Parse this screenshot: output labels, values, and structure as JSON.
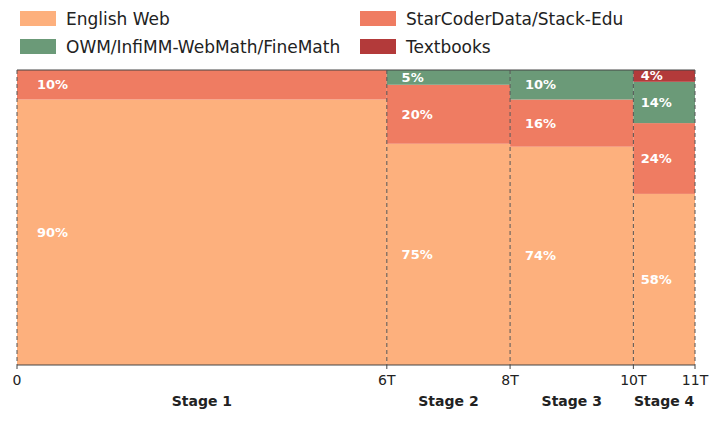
{
  "chart_data": {
    "type": "bar",
    "stacked": true,
    "data_labels": true,
    "tick_labels": "x",
    "legend": "top",
    "categories": [
      "Stage 1",
      "Stage 2",
      "Stage 3",
      "Stage 4"
    ],
    "bins": [
      0,
      6,
      8,
      10,
      11
    ],
    "xlim": [
      0,
      11
    ],
    "xticks": [
      0,
      {
        "value": 6,
        "label": "6T"
      },
      {
        "value": 8,
        "label": "8T"
      },
      {
        "value": 10,
        "label": "10T"
      },
      {
        "value": 11,
        "label": "11T"
      }
    ],
    "ylim": [
      0,
      100
    ],
    "series": [
      {
        "name": "English Web",
        "color": "#fdb07d",
        "values": [
          90,
          75,
          74,
          58
        ],
        "value_labels": [
          "90%",
          "75%",
          "74%",
          "58%"
        ]
      },
      {
        "name": "StarCoderData/Stack-Edu",
        "color": "#ef7c62",
        "values": [
          10,
          20,
          16,
          24
        ],
        "value_labels": [
          "10%",
          "20%",
          "16%",
          "24%"
        ]
      },
      {
        "name": "OWM/InfiMM-WebMath/FineMath",
        "color": "#6b9a78",
        "values": [
          0,
          5,
          10,
          14
        ],
        "value_labels": [
          null,
          "5%",
          "10%",
          "14%"
        ]
      },
      {
        "name": "Textbooks",
        "color": "#b33a3a",
        "values": [
          0,
          0,
          0,
          4
        ],
        "value_labels": [
          null,
          null,
          null,
          "4%"
        ]
      }
    ]
  }
}
